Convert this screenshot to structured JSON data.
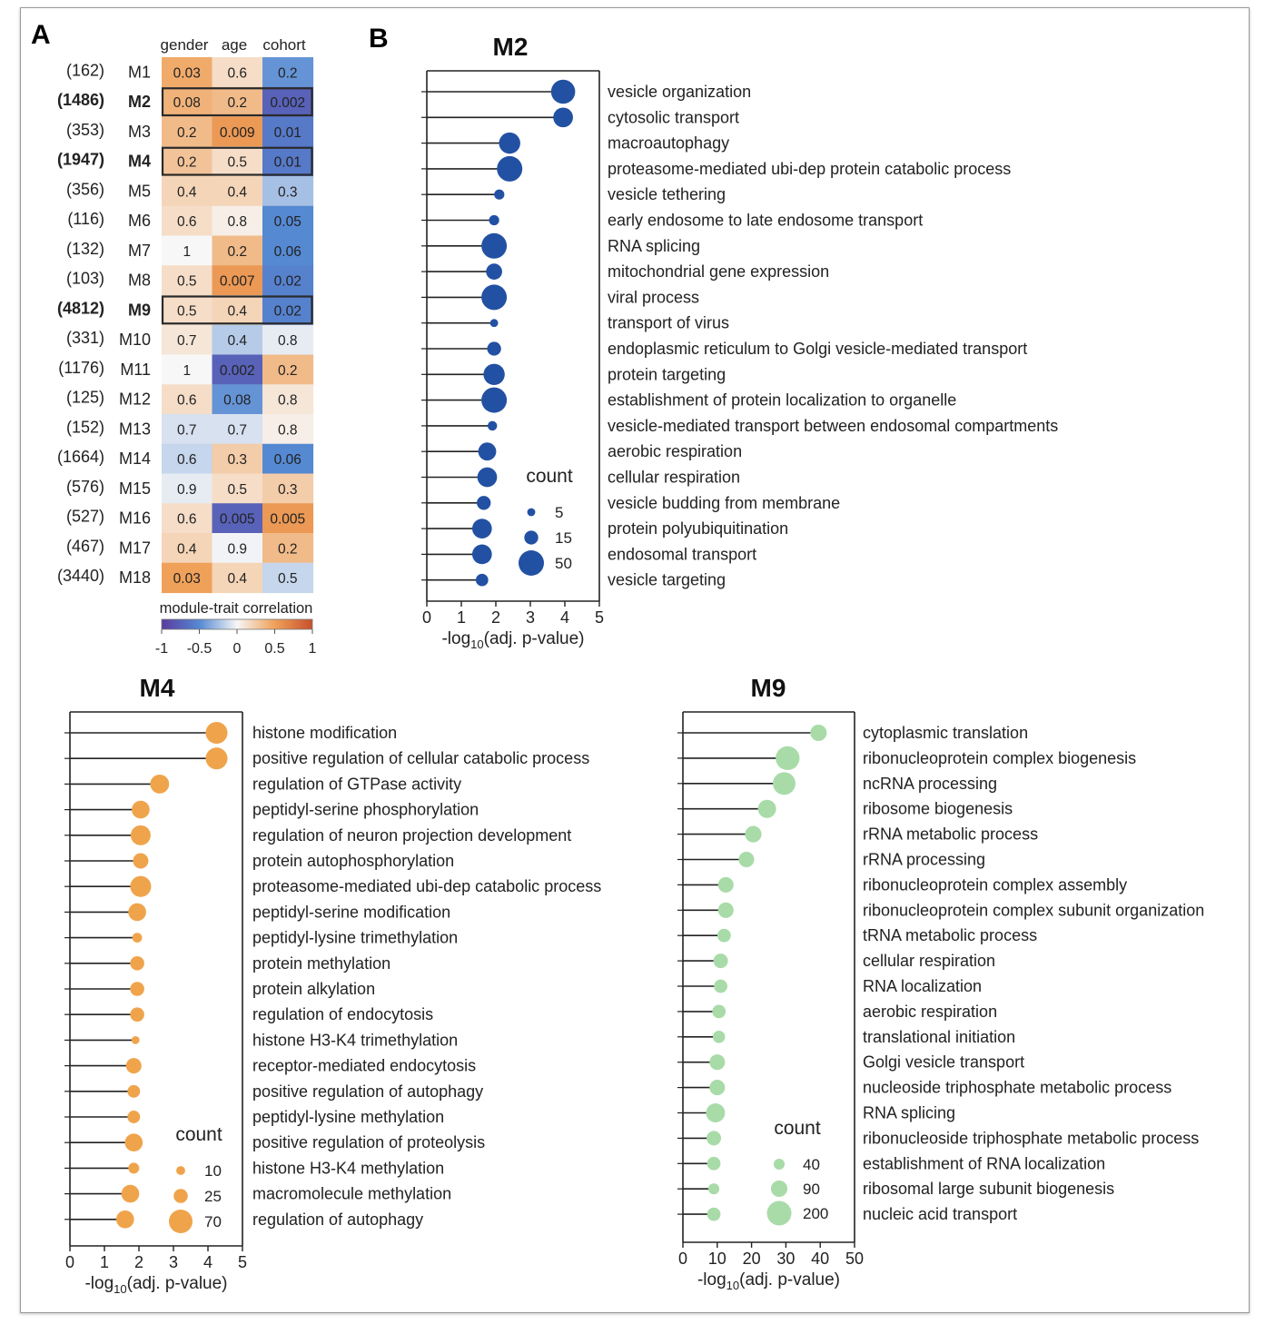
{
  "panel_labels": {
    "a": "A",
    "b": "B"
  },
  "heatmap": {
    "columns": [
      "gender",
      "age",
      "cohort"
    ],
    "rows": [
      {
        "n": "(162)",
        "name": "M1",
        "bold": false,
        "boxed": false,
        "p": [
          "0.03",
          "0.6",
          "0.2"
        ],
        "r": [
          0.45,
          0.15,
          -0.45
        ]
      },
      {
        "n": "(1486)",
        "name": "M2",
        "bold": true,
        "boxed": true,
        "p": [
          "0.08",
          "0.2",
          "0.002"
        ],
        "r": [
          0.4,
          0.35,
          -0.75
        ]
      },
      {
        "n": "(353)",
        "name": "M3",
        "bold": false,
        "boxed": false,
        "p": [
          "0.2",
          "0.009",
          "0.01"
        ],
        "r": [
          0.35,
          0.55,
          -0.6
        ]
      },
      {
        "n": "(1947)",
        "name": "M4",
        "bold": true,
        "boxed": true,
        "p": [
          "0.2",
          "0.5",
          "0.01"
        ],
        "r": [
          0.3,
          0.15,
          -0.6
        ]
      },
      {
        "n": "(356)",
        "name": "M5",
        "bold": false,
        "boxed": false,
        "p": [
          "0.4",
          "0.4",
          "0.3"
        ],
        "r": [
          0.2,
          0.2,
          -0.25
        ]
      },
      {
        "n": "(116)",
        "name": "M6",
        "bold": false,
        "boxed": false,
        "p": [
          "0.6",
          "0.8",
          "0.05"
        ],
        "r": [
          0.15,
          0.05,
          -0.5
        ]
      },
      {
        "n": "(132)",
        "name": "M7",
        "bold": false,
        "boxed": false,
        "p": [
          "1",
          "0.2",
          "0.06"
        ],
        "r": [
          0.0,
          0.35,
          -0.5
        ]
      },
      {
        "n": "(103)",
        "name": "M8",
        "bold": false,
        "boxed": false,
        "p": [
          "0.5",
          "0.007",
          "0.02"
        ],
        "r": [
          0.15,
          0.55,
          -0.55
        ]
      },
      {
        "n": "(4812)",
        "name": "M9",
        "bold": true,
        "boxed": true,
        "p": [
          "0.5",
          "0.4",
          "0.02"
        ],
        "r": [
          0.15,
          0.2,
          -0.55
        ]
      },
      {
        "n": "(331)",
        "name": "M10",
        "bold": false,
        "boxed": false,
        "p": [
          "0.7",
          "0.4",
          "0.8"
        ],
        "r": [
          0.1,
          -0.2,
          -0.05
        ]
      },
      {
        "n": "(1176)",
        "name": "M11",
        "bold": false,
        "boxed": false,
        "p": [
          "1",
          "0.002",
          "0.2"
        ],
        "r": [
          0.0,
          -0.75,
          0.35
        ]
      },
      {
        "n": "(125)",
        "name": "M12",
        "bold": false,
        "boxed": false,
        "p": [
          "0.6",
          "0.08",
          "0.8"
        ],
        "r": [
          0.15,
          -0.45,
          0.1
        ]
      },
      {
        "n": "(152)",
        "name": "M13",
        "bold": false,
        "boxed": false,
        "p": [
          "0.7",
          "0.7",
          "0.8"
        ],
        "r": [
          -0.1,
          -0.1,
          0.05
        ]
      },
      {
        "n": "(1664)",
        "name": "M14",
        "bold": false,
        "boxed": false,
        "p": [
          "0.6",
          "0.3",
          "0.06"
        ],
        "r": [
          -0.15,
          0.25,
          -0.5
        ]
      },
      {
        "n": "(576)",
        "name": "M15",
        "bold": false,
        "boxed": false,
        "p": [
          "0.9",
          "0.5",
          "0.3"
        ],
        "r": [
          -0.05,
          0.15,
          0.25
        ]
      },
      {
        "n": "(527)",
        "name": "M16",
        "bold": false,
        "boxed": false,
        "p": [
          "0.6",
          "0.005",
          "0.005"
        ],
        "r": [
          0.15,
          -0.75,
          0.55
        ]
      },
      {
        "n": "(467)",
        "name": "M17",
        "bold": false,
        "boxed": false,
        "p": [
          "0.4",
          "0.9",
          "0.2"
        ],
        "r": [
          0.2,
          -0.02,
          0.35
        ]
      },
      {
        "n": "(3440)",
        "name": "M18",
        "bold": false,
        "boxed": false,
        "p": [
          "0.03",
          "0.4",
          "0.5"
        ],
        "r": [
          0.5,
          0.2,
          -0.15
        ]
      }
    ],
    "colorbar": {
      "label": "module-trait correlation",
      "ticks": [
        "-1",
        "-0.5",
        "0",
        "0.5",
        "1"
      ]
    }
  },
  "chart_data": [
    {
      "type": "heatmap",
      "title": "",
      "columns": [
        "gender",
        "age",
        "cohort"
      ],
      "rows": [
        "M1",
        "M2",
        "M3",
        "M4",
        "M5",
        "M6",
        "M7",
        "M8",
        "M9",
        "M10",
        "M11",
        "M12",
        "M13",
        "M14",
        "M15",
        "M16",
        "M17",
        "M18"
      ],
      "row_sizes": [
        162,
        1486,
        353,
        1947,
        356,
        116,
        132,
        103,
        4812,
        331,
        1176,
        125,
        152,
        1664,
        576,
        527,
        467,
        3440
      ],
      "cell_labels": [
        [
          "0.03",
          "0.6",
          "0.2"
        ],
        [
          "0.08",
          "0.2",
          "0.002"
        ],
        [
          "0.2",
          "0.009",
          "0.01"
        ],
        [
          "0.2",
          "0.5",
          "0.01"
        ],
        [
          "0.4",
          "0.4",
          "0.3"
        ],
        [
          "0.6",
          "0.8",
          "0.05"
        ],
        [
          "1",
          "0.2",
          "0.06"
        ],
        [
          "0.5",
          "0.007",
          "0.02"
        ],
        [
          "0.5",
          "0.4",
          "0.02"
        ],
        [
          "0.7",
          "0.4",
          "0.8"
        ],
        [
          "1",
          "0.002",
          "0.2"
        ],
        [
          "0.6",
          "0.08",
          "0.8"
        ],
        [
          "0.7",
          "0.7",
          "0.8"
        ],
        [
          "0.6",
          "0.3",
          "0.06"
        ],
        [
          "0.9",
          "0.5",
          "0.3"
        ],
        [
          "0.6",
          "0.005",
          "0.005"
        ],
        [
          "0.4",
          "0.9",
          "0.2"
        ],
        [
          "0.03",
          "0.4",
          "0.5"
        ]
      ],
      "colorbar_label": "module-trait correlation",
      "color_range": [
        -1,
        1
      ]
    },
    {
      "type": "scatter",
      "title": "M2",
      "color": "#2251a3",
      "xlabel": "-log10(adj. p-value)",
      "xlim": [
        0,
        5
      ],
      "xticks": [
        0,
        1,
        2,
        3,
        4,
        5
      ],
      "legend_title": "count",
      "legend": [
        5,
        15,
        50
      ],
      "size_ref": 50,
      "categories": [
        "vesicle organization",
        "cytosolic transport",
        "macroautophagy",
        "proteasome-mediated ubi-dep protein catabolic process",
        "vesicle tethering",
        "early endosome to late endosome transport",
        "RNA splicing",
        "mitochondrial gene expression",
        "viral process",
        "transport of virus",
        "endoplasmic reticulum to Golgi vesicle-mediated transport",
        "protein targeting",
        "establishment of protein localization to organelle",
        "vesicle-mediated transport between endosomal compartments",
        "aerobic respiration",
        "cellular respiration",
        "vesicle budding from membrane",
        "protein polyubiquitination",
        "endosomal transport",
        "vesicle targeting"
      ],
      "x": [
        3.95,
        3.95,
        2.4,
        2.4,
        2.1,
        1.95,
        1.95,
        1.95,
        1.95,
        1.95,
        1.95,
        1.95,
        1.95,
        1.9,
        1.75,
        1.75,
        1.65,
        1.6,
        1.6,
        1.6
      ],
      "count": [
        45,
        30,
        35,
        50,
        8,
        8,
        50,
        20,
        50,
        5,
        15,
        35,
        50,
        7,
        25,
        30,
        15,
        30,
        30,
        12
      ]
    },
    {
      "type": "scatter",
      "title": "M4",
      "color": "#efa44b",
      "xlabel": "-log10(adj. p-value)",
      "xlim": [
        0,
        5
      ],
      "xticks": [
        0,
        1,
        2,
        3,
        4,
        5
      ],
      "legend_title": "count",
      "legend": [
        10,
        25,
        70
      ],
      "size_ref": 70,
      "categories": [
        "histone modification",
        "positive regulation of cellular catabolic process",
        "regulation of GTPase activity",
        "peptidyl-serine phosphorylation",
        "regulation of neuron projection development",
        "protein autophosphorylation",
        "proteasome-mediated ubi-dep catabolic process",
        "peptidyl-serine modification",
        "peptidyl-lysine trimethylation",
        "protein methylation",
        "protein alkylation",
        "regulation of endocytosis",
        "histone H3-K4 trimethylation",
        "receptor-mediated endocytosis",
        "positive regulation of autophagy",
        "peptidyl-lysine methylation",
        "positive regulation of proteolysis",
        "histone H3-K4 methylation",
        "macromolecule methylation",
        "regulation of autophagy"
      ],
      "x": [
        4.25,
        4.25,
        2.6,
        2.05,
        2.05,
        2.05,
        2.05,
        1.95,
        1.95,
        1.95,
        1.95,
        1.95,
        1.9,
        1.85,
        1.85,
        1.85,
        1.85,
        1.85,
        1.75,
        1.6
      ],
      "count": [
        60,
        60,
        45,
        40,
        50,
        30,
        55,
        40,
        12,
        25,
        25,
        25,
        8,
        30,
        20,
        20,
        40,
        15,
        40,
        40
      ]
    },
    {
      "type": "scatter",
      "title": "M9",
      "color": "#a8dba8",
      "xlabel": "-log10(adj. p-value)",
      "xlim": [
        0,
        50
      ],
      "xticks": [
        0,
        10,
        20,
        30,
        40,
        50
      ],
      "legend_title": "count",
      "legend": [
        40,
        90,
        200
      ],
      "size_ref": 200,
      "categories": [
        "cytoplasmic translation",
        "ribonucleoprotein complex biogenesis",
        "ncRNA processing",
        "ribosome biogenesis",
        "rRNA metabolic process",
        "rRNA processing",
        "ribonucleoprotein complex assembly",
        "ribonucleoprotein complex subunit organization",
        "tRNA metabolic process",
        "cellular respiration",
        "RNA localization",
        "aerobic respiration",
        "translational initiation",
        "Golgi vesicle transport",
        "nucleoside triphosphate metabolic process",
        "RNA splicing",
        "ribonucleoside triphosphate metabolic process",
        "establishment of RNA localization",
        "ribosomal large subunit biogenesis",
        "nucleic acid transport"
      ],
      "x": [
        39.5,
        30.5,
        29.5,
        24.5,
        20.5,
        18.5,
        12.5,
        12.5,
        12,
        11,
        11,
        10.5,
        10.5,
        10,
        10,
        9.5,
        9,
        9,
        9,
        9
      ],
      "count": [
        90,
        190,
        170,
        110,
        90,
        80,
        80,
        80,
        60,
        70,
        60,
        60,
        50,
        80,
        80,
        120,
        70,
        60,
        40,
        60
      ]
    }
  ]
}
